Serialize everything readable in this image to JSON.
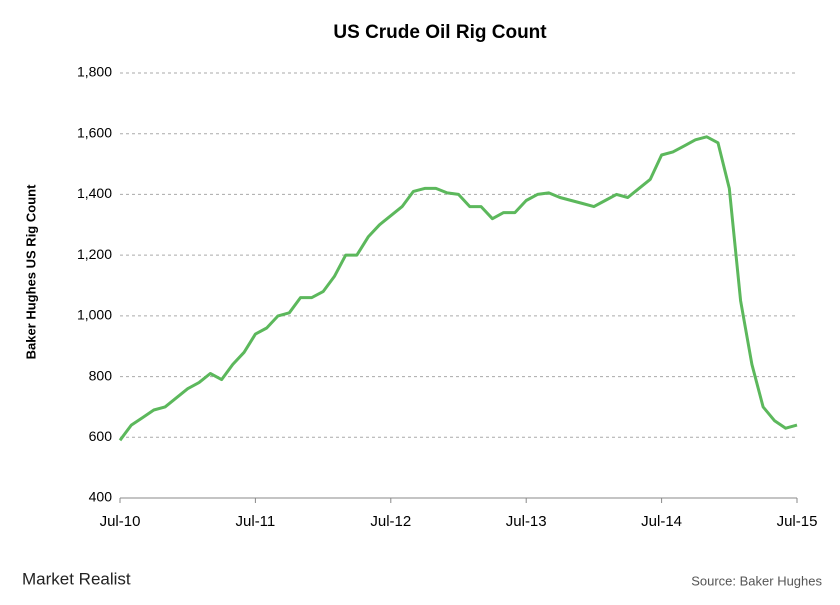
{
  "chart_data": {
    "type": "line",
    "title": "US Crude Oil Rig Count",
    "y_label": "Baker Hughes US Rig Count",
    "source": "Source: Baker Hughes",
    "brand": "Market Realist",
    "categories": [
      "Jul-10",
      null,
      null,
      null,
      null,
      null,
      null,
      null,
      null,
      null,
      null,
      null,
      "Jul-11",
      null,
      null,
      null,
      null,
      null,
      null,
      null,
      null,
      null,
      null,
      null,
      "Jul-12",
      null,
      null,
      null,
      null,
      null,
      null,
      null,
      null,
      null,
      null,
      null,
      "Jul-13",
      null,
      null,
      null,
      null,
      null,
      null,
      null,
      null,
      null,
      null,
      null,
      "Jul-14",
      null,
      null,
      null,
      null,
      null,
      null,
      null,
      null,
      null,
      null,
      null,
      "Jul-15"
    ],
    "series": [
      {
        "name": "US Crude Oil Rig Count",
        "color": "#5cb85c",
        "values": [
          590,
          640,
          665,
          690,
          700,
          730,
          760,
          780,
          810,
          790,
          840,
          880,
          940,
          960,
          1000,
          1010,
          1060,
          1060,
          1080,
          1130,
          1200,
          1200,
          1260,
          1300,
          1330,
          1360,
          1410,
          1420,
          1420,
          1405,
          1400,
          1360,
          1360,
          1320,
          1340,
          1340,
          1380,
          1400,
          1405,
          1390,
          1380,
          1370,
          1360,
          1380,
          1400,
          1390,
          1420,
          1450,
          1530,
          1540,
          1560,
          1580,
          1590,
          1570,
          1420,
          1050,
          840,
          700,
          655,
          630,
          640
        ]
      }
    ],
    "ylim": [
      400,
      1800
    ],
    "yticks": [
      400,
      600,
      800,
      {
        "value": 1000,
        "label": "1,000"
      },
      {
        "value": 1200,
        "label": "1,200"
      },
      {
        "value": 1400,
        "label": "1,400"
      },
      {
        "value": 1600,
        "label": "1,600"
      },
      {
        "value": 1800,
        "label": "1,800"
      }
    ],
    "grid": true
  }
}
